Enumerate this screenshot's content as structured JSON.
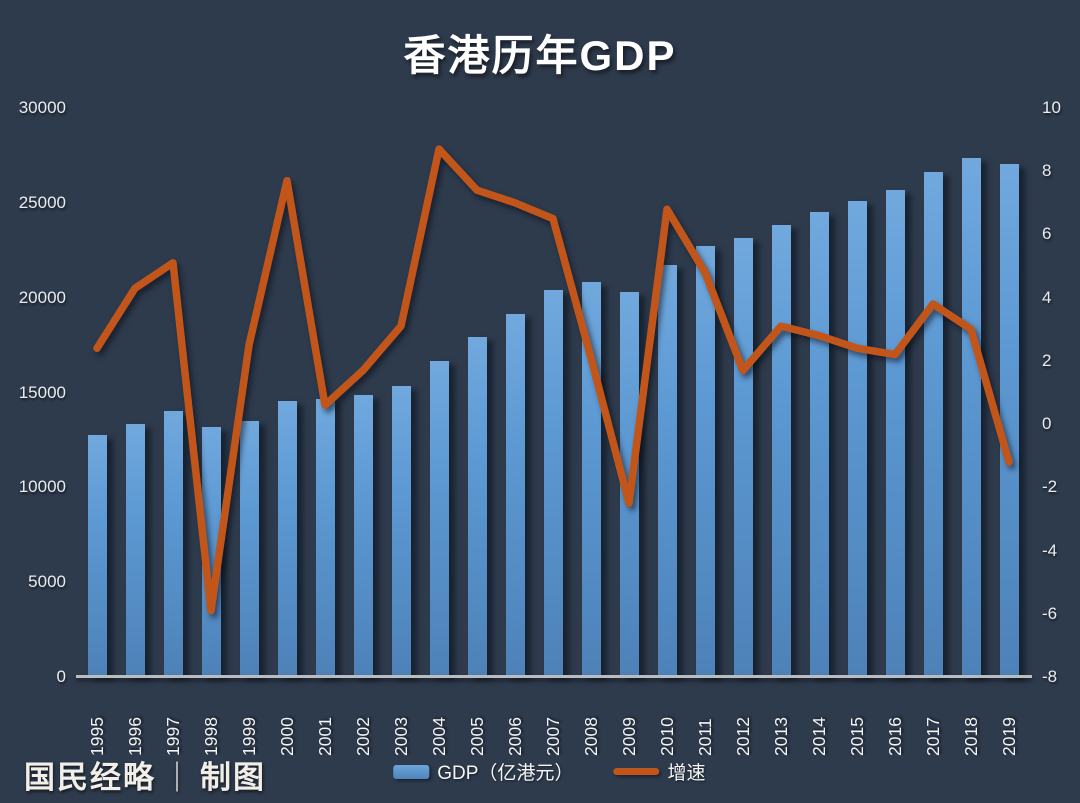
{
  "title": "香港历年GDP",
  "watermark": {
    "brand": "国民经略",
    "divider": "｜",
    "suffix": "制图"
  },
  "legend": {
    "gdp_label": "GDP（亿港元）",
    "growth_label": "增速"
  },
  "colors": {
    "background": "#2e3b4d",
    "bar_top": "#71a9de",
    "bar_bottom": "#4d82b8",
    "line": "#c2561a",
    "text": "#f2f4f6",
    "axis_line": "#b9bdc2"
  },
  "chart_data": {
    "type": "bar",
    "combo": "bar+line",
    "title": "香港历年GDP",
    "categories": [
      "1995",
      "1996",
      "1997",
      "1998",
      "1999",
      "2000",
      "2001",
      "2002",
      "2003",
      "2004",
      "2005",
      "2006",
      "2007",
      "2008",
      "2009",
      "2010",
      "2011",
      "2012",
      "2013",
      "2014",
      "2015",
      "2016",
      "2017",
      "2018",
      "2019"
    ],
    "series": [
      {
        "name": "GDP（亿港元）",
        "type": "bar",
        "axis": "left",
        "values": [
          12772,
          13321,
          14000,
          13174,
          13504,
          14544,
          14631,
          14880,
          15342,
          16677,
          17910,
          19163,
          20409,
          20838,
          20317,
          21699,
          22741,
          23127,
          23844,
          24512,
          25100,
          25652,
          26627,
          27372,
          27044
        ]
      },
      {
        "name": "增速",
        "type": "line",
        "axis": "right",
        "values": [
          2.4,
          4.3,
          5.1,
          -5.9,
          2.5,
          7.7,
          0.6,
          1.7,
          3.1,
          8.7,
          7.4,
          7.0,
          6.5,
          2.1,
          -2.5,
          6.8,
          4.8,
          1.7,
          3.1,
          2.8,
          2.4,
          2.2,
          3.8,
          3.0,
          -1.2
        ]
      }
    ],
    "left_axis": {
      "label": "",
      "ticks": [
        30000,
        25000,
        20000,
        15000,
        10000,
        5000,
        0
      ],
      "range": [
        0,
        30000
      ]
    },
    "right_axis": {
      "label": "",
      "ticks": [
        10,
        8,
        6,
        4,
        2,
        0,
        -2,
        -4,
        -6,
        -8
      ],
      "range": [
        -8,
        10
      ]
    },
    "grid": false,
    "legend_position": "bottom"
  }
}
